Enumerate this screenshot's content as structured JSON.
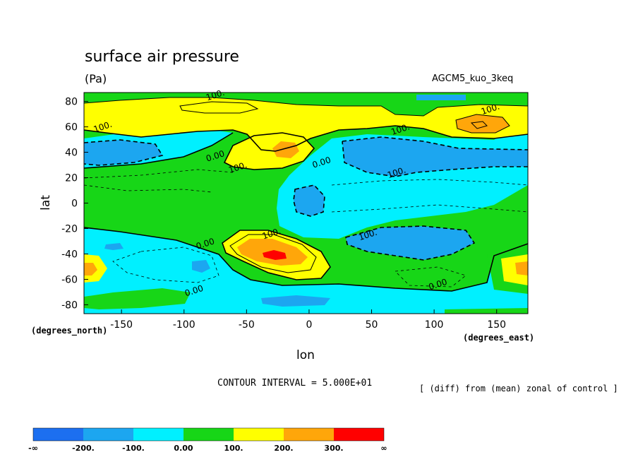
{
  "header": {
    "title": "surface air pressure",
    "units": "(Pa)",
    "model": "AGCM5_kuo_3keq",
    "x_units": "(degrees_north)",
    "y_units": "(degrees_east)",
    "contour_interval": "CONTOUR INTERVAL = 5.000E+01",
    "note": "[ (diff) from (mean) zonal of control ]"
  },
  "colors": {
    "level_neg_inf": "#1c6ff0",
    "level_neg200": "#1ca6f0",
    "level_neg100": "#00f0ff",
    "level_0": "#17d617",
    "level_100": "#ffff00",
    "level_200": "#ffa60a",
    "level_300": "#ff0000"
  },
  "chart_data": {
    "type": "heatmap",
    "title": "surface air pressure",
    "subtitle": "(Pa)",
    "xlabel": "lon",
    "ylabel": "lat",
    "xlim": [
      -180,
      175
    ],
    "ylim": [
      -87,
      87
    ],
    "x_ticks": [
      "-150",
      "-100",
      "-50",
      "0",
      "50",
      "100",
      "150"
    ],
    "x_tick_values": [
      -150,
      -100,
      -50,
      0,
      50,
      100,
      150
    ],
    "y_ticks": [
      "80",
      "60",
      "40",
      "20",
      "0",
      "-20",
      "-40",
      "-60",
      "-80"
    ],
    "y_tick_values": [
      80,
      60,
      40,
      20,
      0,
      -20,
      -40,
      -60,
      -80
    ],
    "contour_labels": [
      {
        "text": "100.",
        "lon": -75,
        "lat": 85
      },
      {
        "text": "100.",
        "lon": 145,
        "lat": 74
      },
      {
        "text": "100.",
        "lon": -165,
        "lat": 60
      },
      {
        "text": "100.",
        "lon": 73,
        "lat": 58
      },
      {
        "text": "0.00",
        "lon": -75,
        "lat": 37
      },
      {
        "text": "100.",
        "lon": -57,
        "lat": 28
      },
      {
        "text": "0.00",
        "lon": 10,
        "lat": 32
      },
      {
        "text": "100.",
        "lon": 70,
        "lat": 24
      },
      {
        "text": "100.",
        "lon": -30,
        "lat": -24
      },
      {
        "text": "100.",
        "lon": 47,
        "lat": -25
      },
      {
        "text": "0.00",
        "lon": -83,
        "lat": -32
      },
      {
        "text": "0.00",
        "lon": 103,
        "lat": -64
      },
      {
        "text": "0.00",
        "lon": -92,
        "lat": -69
      }
    ],
    "legend": {
      "labels": [
        "-∞",
        "-200.",
        "-100.",
        "0.00",
        "100.",
        "200.",
        "300.",
        "∞"
      ],
      "colors": [
        "#1c6ff0",
        "#1ca6f0",
        "#00f0ff",
        "#17d617",
        "#ffff00",
        "#ffa60a",
        "#ff0000"
      ]
    }
  }
}
